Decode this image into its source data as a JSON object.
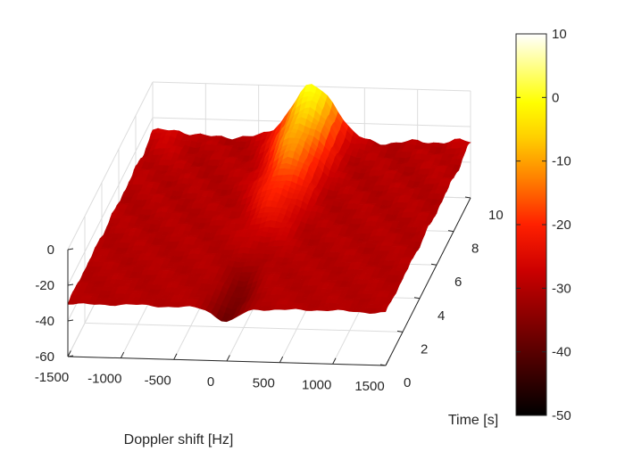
{
  "chart_data": {
    "type": "surface3d",
    "title": "",
    "colormap": "hot",
    "x": {
      "label": "Doppler shift [Hz]",
      "range": [
        -1500,
        1500
      ],
      "ticks": [
        -1500,
        -1000,
        -500,
        0,
        500,
        1000,
        1500
      ],
      "tick_labels": [
        "-1500",
        "-1000",
        "-500",
        "0",
        "500",
        "1000",
        "1500"
      ]
    },
    "y": {
      "label": "Time [s]",
      "range": [
        0,
        10
      ],
      "ticks": [
        0,
        2,
        4,
        6,
        8,
        10
      ],
      "tick_labels": [
        "0",
        "2",
        "4",
        "6",
        "8",
        "10"
      ]
    },
    "z": {
      "label": "",
      "range": [
        -60,
        0
      ],
      "ticks": [
        -60,
        -40,
        -20,
        0
      ],
      "tick_labels": [
        "-60",
        "-40",
        "-20",
        "0"
      ]
    },
    "colorbar": {
      "range": [
        -50,
        10
      ],
      "ticks": [
        10,
        0,
        -10,
        -20,
        -30,
        -40,
        -50
      ],
      "tick_labels": [
        "10",
        "0",
        "-10",
        "-20",
        "-30",
        "-40",
        "-50"
      ]
    },
    "surface": {
      "description_values": "Power spectral level vs Doppler shift and time; background about -30, ridge near 0 Hz peaks near 0 at the end of the record.",
      "baseline_level": -30,
      "peak": {
        "doppler_hz": 0,
        "time_s": 10,
        "level": 0
      },
      "ridge_start": {
        "doppler_hz": 0,
        "time_s": 0,
        "level": -38
      }
    }
  }
}
